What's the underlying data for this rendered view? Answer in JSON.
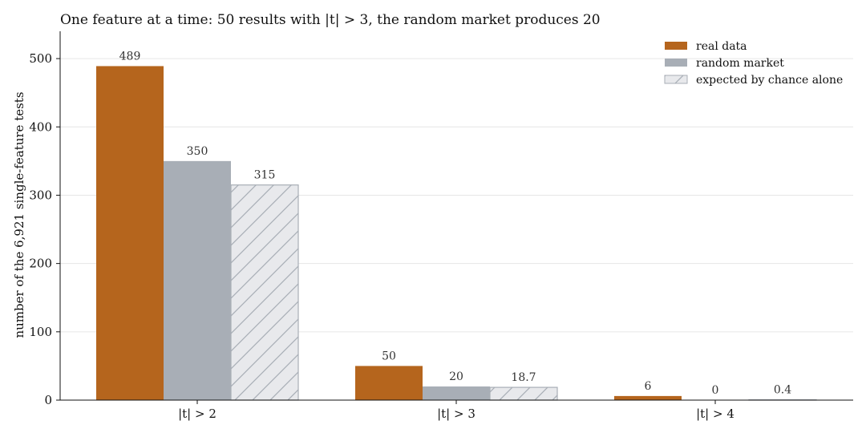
{
  "chart_data": {
    "type": "bar",
    "title": "One feature at a time: 50 results with |t| > 3, the random market produces 20",
    "ylabel": "number of the 6,921 single-feature tests",
    "xlabel": "",
    "categories": [
      "|t| > 2",
      "|t| > 3",
      "|t| > 4"
    ],
    "ylim": [
      0,
      540
    ],
    "yticks": [
      0,
      100,
      200,
      300,
      400,
      500
    ],
    "grid": true,
    "legend_position": "top-right",
    "series": [
      {
        "name": "real data",
        "values": [
          489,
          50,
          6
        ],
        "labels": [
          "489",
          "50",
          "6"
        ],
        "color": "#b5651d",
        "hatch": false
      },
      {
        "name": "random market",
        "values": [
          350,
          20,
          0
        ],
        "labels": [
          "350",
          "20",
          "0"
        ],
        "color": "#a8aeb6",
        "hatch": false
      },
      {
        "name": "expected by chance alone",
        "values": [
          315,
          18.7,
          0.4
        ],
        "labels": [
          "315",
          "18.7",
          "0.4"
        ],
        "color": "#e8e9ec",
        "hatch": true,
        "edge": "#a8aeb6"
      }
    ]
  }
}
